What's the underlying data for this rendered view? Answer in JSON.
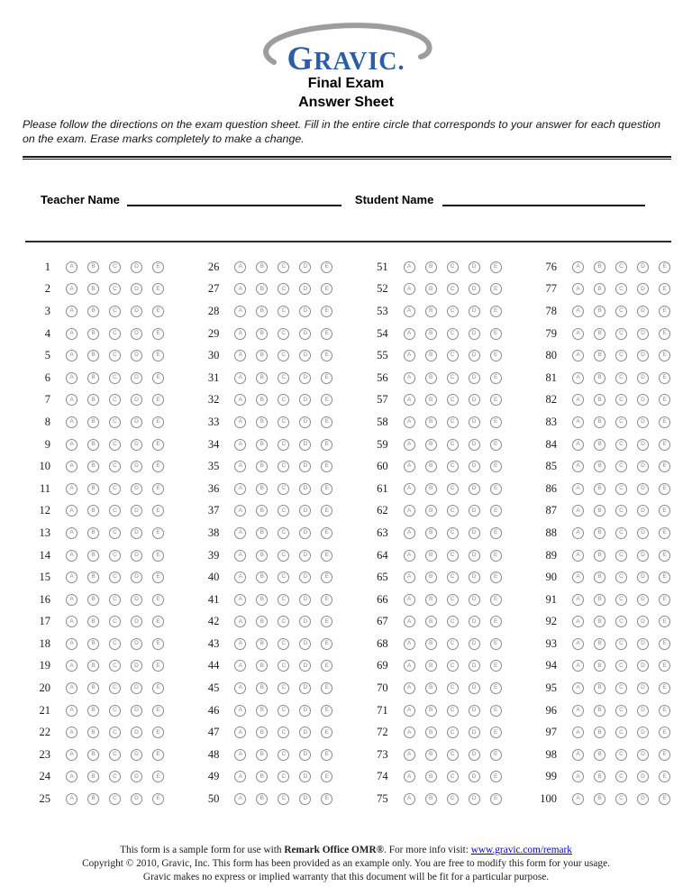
{
  "logo": {
    "brand_first_letter": "G",
    "brand_rest": "RAVIC."
  },
  "header": {
    "title_line1": "Final Exam",
    "title_line2": "Answer Sheet"
  },
  "instructions": "Please follow the directions on the exam question sheet. Fill in the entire circle that corresponds to your answer for each question on the exam. Erase marks completely to make a change.",
  "name_fields": {
    "teacher_label": "Teacher Name",
    "student_label": "Student Name"
  },
  "answer_grid": {
    "options": [
      "A",
      "B",
      "C",
      "D",
      "E"
    ],
    "columns": [
      [
        1,
        2,
        3,
        4,
        5,
        6,
        7,
        8,
        9,
        10,
        11,
        12,
        13,
        14,
        15,
        16,
        17,
        18,
        19,
        20,
        21,
        22,
        23,
        24,
        25
      ],
      [
        26,
        27,
        28,
        29,
        30,
        31,
        32,
        33,
        34,
        35,
        36,
        37,
        38,
        39,
        40,
        41,
        42,
        43,
        44,
        45,
        46,
        47,
        48,
        49,
        50
      ],
      [
        51,
        52,
        53,
        54,
        55,
        56,
        57,
        58,
        59,
        60,
        61,
        62,
        63,
        64,
        65,
        66,
        67,
        68,
        69,
        70,
        71,
        72,
        73,
        74,
        75
      ],
      [
        76,
        77,
        78,
        79,
        80,
        81,
        82,
        83,
        84,
        85,
        86,
        87,
        88,
        89,
        90,
        91,
        92,
        93,
        94,
        95,
        96,
        97,
        98,
        99,
        100
      ]
    ]
  },
  "footer": {
    "line1_prefix": "This form is a sample form for use with ",
    "line1_product": "Remark Office OMR®",
    "line1_mid": ". For more info visit: ",
    "line1_link": "www.gravic.com/remark",
    "line2": "Copyright © 2010, Gravic, Inc. This form has been provided as an example only. You are free to modify this form for your usage.",
    "line3": "Gravic makes no express or implied warranty that this document will be fit for a particular purpose."
  },
  "colors": {
    "brand_blue": "#2b5ea7",
    "swoosh_gray": "#9d9d9d",
    "bubble_gray": "#8a8a8a",
    "link_blue": "#0000cc"
  }
}
